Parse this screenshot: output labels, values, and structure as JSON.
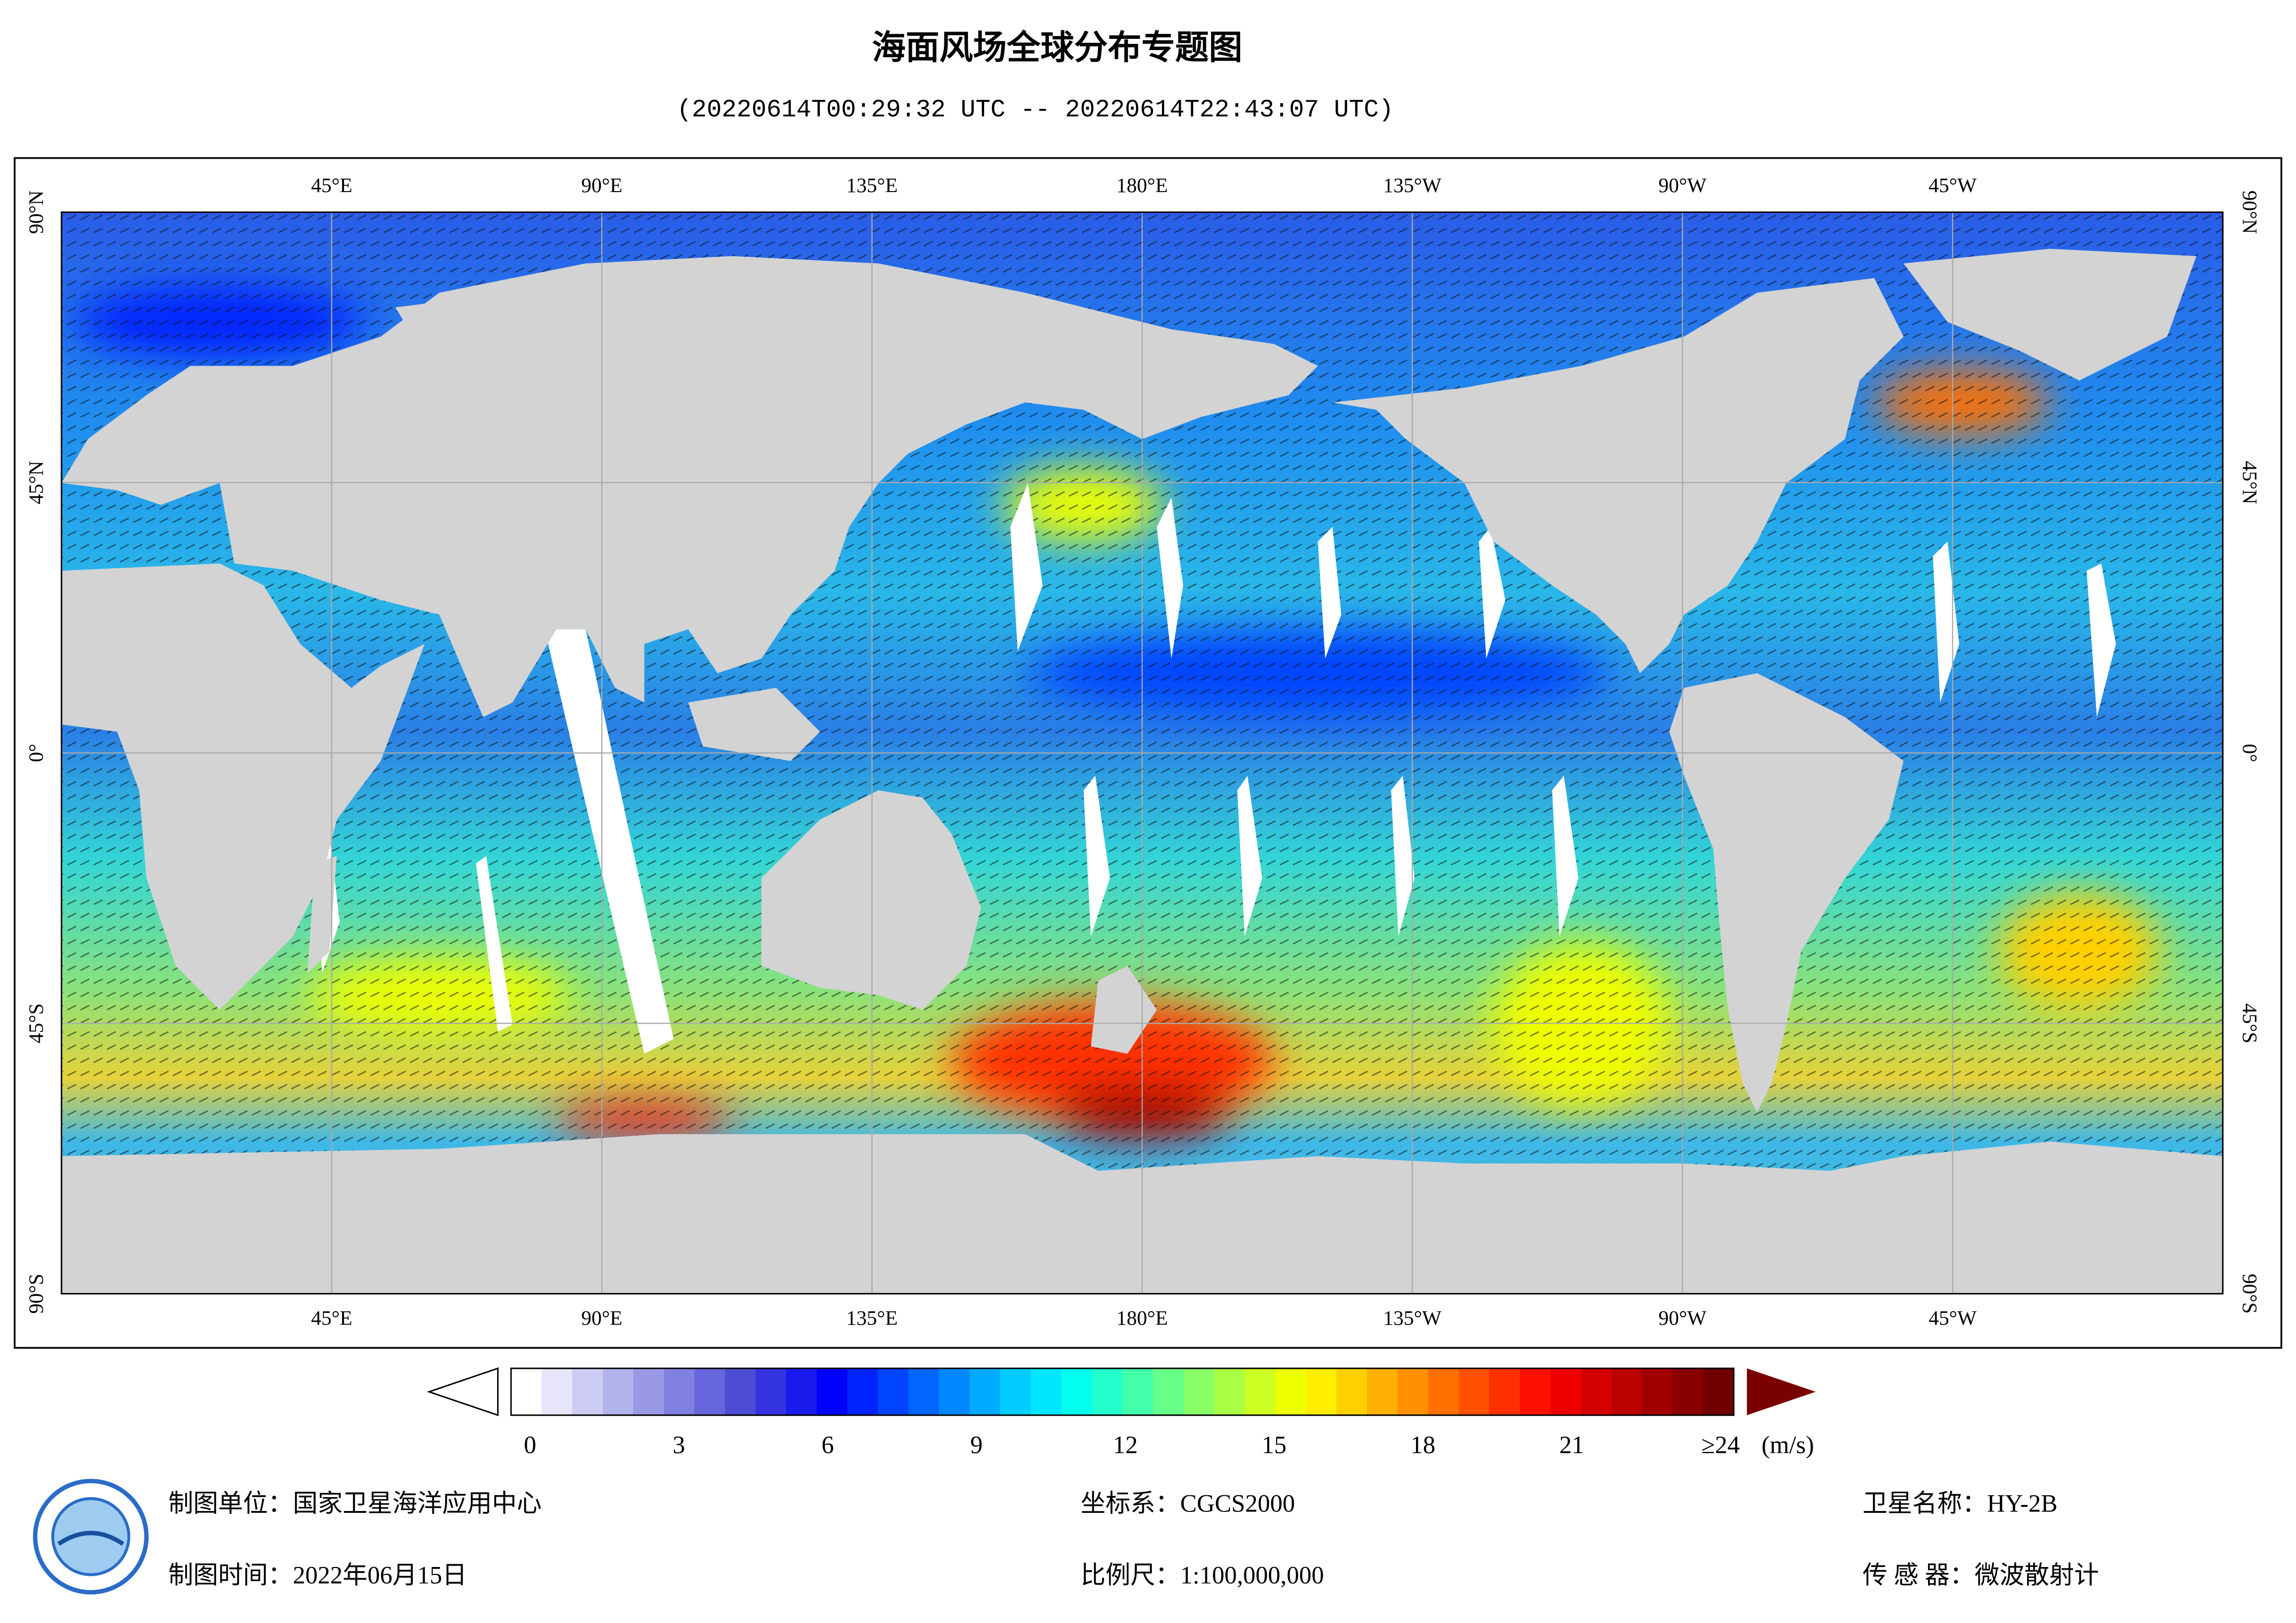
{
  "header": {
    "title": "海面风场全球分布专题图",
    "subtitle": "(20220614T00:29:32 UTC -- 20220614T22:43:07 UTC)"
  },
  "map": {
    "xlim": [
      0,
      360
    ],
    "ylim": [
      -90,
      90
    ],
    "grid": true,
    "lon_ticks": [
      {
        "value": 45,
        "label": "45°E"
      },
      {
        "value": 90,
        "label": "90°E"
      },
      {
        "value": 135,
        "label": "135°E"
      },
      {
        "value": 180,
        "label": "180°E"
      },
      {
        "value": 225,
        "label": "135°W"
      },
      {
        "value": 270,
        "label": "90°W"
      },
      {
        "value": 315,
        "label": "45°W"
      }
    ],
    "lat_ticks": [
      {
        "value": 90,
        "label": "90°N"
      },
      {
        "value": 45,
        "label": "45°N"
      },
      {
        "value": 0,
        "label": "0°"
      },
      {
        "value": -45,
        "label": "45°S"
      },
      {
        "value": -90,
        "label": "90°S"
      }
    ]
  },
  "colorbar": {
    "ticks": [
      0,
      3,
      6,
      9,
      12,
      15,
      18,
      21,
      {
        "value": 24,
        "label": "≥24"
      }
    ],
    "unit": "(m/s)",
    "under_color": "#ffffff",
    "over_color": "#7a0000",
    "colors": [
      "#ffffff",
      "#e6e6f8",
      "#ccccf2",
      "#b3b3ec",
      "#9999e6",
      "#8080e0",
      "#6666da",
      "#4d4dd4",
      "#3333e0",
      "#1a1aee",
      "#0000ff",
      "#0022ff",
      "#0044ff",
      "#0066ff",
      "#0088ff",
      "#00aaff",
      "#00ccff",
      "#00e6ff",
      "#00ffee",
      "#22ffcc",
      "#44ffaa",
      "#66ff88",
      "#88ff66",
      "#aaff44",
      "#ccff22",
      "#eeff00",
      "#ffee00",
      "#ffd000",
      "#ffb000",
      "#ff9000",
      "#ff7000",
      "#ff5000",
      "#ff3000",
      "#ff1000",
      "#ee0000",
      "#d40000",
      "#bb0000",
      "#a00000",
      "#880000",
      "#700000"
    ]
  },
  "footer": {
    "organization": "制图单位：国家卫星海洋应用中心",
    "date": "制图时间：2022年06月15日",
    "crs": "坐标系：CGCS2000",
    "scale": "比例尺：1:100,000,000",
    "satellite": "卫星名称：HY-2B",
    "sensor": "传 感 器：微波散射计"
  }
}
